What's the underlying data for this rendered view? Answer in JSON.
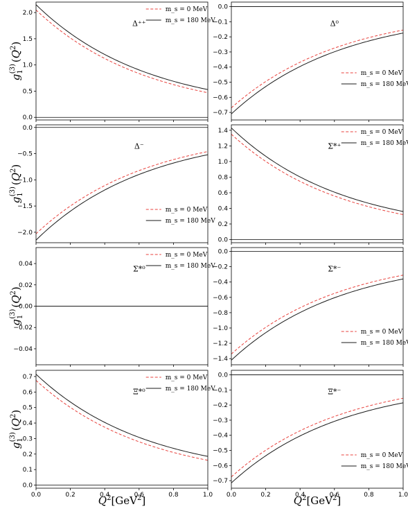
{
  "figure": {
    "ylabel": {
      "g": "g",
      "sub": "1",
      "sup": "(3)",
      "arg": "(Q",
      "argsup": "2",
      "close": ")"
    },
    "xlabel": {
      "q": "Q",
      "sup": "2",
      "unit": "[GeV",
      "unitsup": "2",
      "close": "]"
    }
  },
  "chart_data": [
    {
      "type": "line",
      "label": "Δ⁺⁺",
      "legend": "top-right",
      "xlim": [
        0,
        1
      ],
      "ylim": [
        -0.05,
        2.2
      ],
      "xticks": [
        "0.0",
        "0.2",
        "0.4",
        "0.6",
        "0.8",
        "1.0"
      ],
      "yticks": [
        "0.0",
        "0.5",
        "1.0",
        "1.5",
        "2.0"
      ],
      "zero_line": true,
      "series": [
        {
          "name": "m_s = 0 MeV",
          "style": "dashed",
          "color": "#e8413c",
          "start": 2.05,
          "end": 0.47,
          "alpha": 1.0
        },
        {
          "name": "m_s = 180 MeV",
          "style": "solid",
          "color": "#1a1a1a",
          "start": 2.15,
          "end": 0.53,
          "alpha": 1.0
        }
      ]
    },
    {
      "type": "line",
      "label": "Δ⁰",
      "legend": "center-right",
      "xlim": [
        0,
        1
      ],
      "ylim": [
        -0.75,
        0.03
      ],
      "xticks": [
        "0.0",
        "0.2",
        "0.4",
        "0.6",
        "0.8",
        "1.0"
      ],
      "yticks": [
        "0.0",
        "-0.1",
        "-0.2",
        "-0.3",
        "-0.4",
        "-0.5",
        "-0.6",
        "-0.7"
      ],
      "zero_line": true,
      "series": [
        {
          "name": "m_s = 0 MeV",
          "style": "dashed",
          "color": "#e8413c",
          "start": -0.67,
          "end": -0.155,
          "alpha": 1.0
        },
        {
          "name": "m_s = 180 MeV",
          "style": "solid",
          "color": "#1a1a1a",
          "start": -0.71,
          "end": -0.175,
          "alpha": 1.0
        }
      ]
    },
    {
      "type": "line",
      "label": "Δ⁻",
      "legend": "lower-right",
      "xlim": [
        0,
        1
      ],
      "ylim": [
        -2.2,
        0.05
      ],
      "xticks": [
        "0.0",
        "0.2",
        "0.4",
        "0.6",
        "0.8",
        "1.0"
      ],
      "yticks": [
        "0.0",
        "-0.5",
        "-1.0",
        "-1.5",
        "-2.0"
      ],
      "zero_line": true,
      "series": [
        {
          "name": "m_s = 0 MeV",
          "style": "dashed",
          "color": "#e8413c",
          "start": -2.03,
          "end": -0.46,
          "alpha": 1.0
        },
        {
          "name": "m_s = 180 MeV",
          "style": "solid",
          "color": "#1a1a1a",
          "start": -2.15,
          "end": -0.52,
          "alpha": 1.0
        }
      ]
    },
    {
      "type": "line",
      "label": "Σ*⁺",
      "legend": "top-right",
      "xlim": [
        0,
        1
      ],
      "ylim": [
        -0.04,
        1.47
      ],
      "xticks": [
        "0.0",
        "0.2",
        "0.4",
        "0.6",
        "0.8",
        "1.0"
      ],
      "yticks": [
        "0.0",
        "0.2",
        "0.4",
        "0.6",
        "0.8",
        "1.0",
        "1.2",
        "1.4"
      ],
      "zero_line": true,
      "series": [
        {
          "name": "m_s = 0 MeV",
          "style": "dashed",
          "color": "#e8413c",
          "start": 1.35,
          "end": 0.32,
          "alpha": 1.0
        },
        {
          "name": "m_s = 180 MeV",
          "style": "solid",
          "color": "#1a1a1a",
          "start": 1.43,
          "end": 0.36,
          "alpha": 1.0
        }
      ]
    },
    {
      "type": "line",
      "label": "Σ*⁰",
      "legend": "top-right",
      "xlim": [
        0,
        1
      ],
      "ylim": [
        -0.055,
        0.055
      ],
      "xticks": [
        "0.0",
        "0.2",
        "0.4",
        "0.6",
        "0.8",
        "1.0"
      ],
      "yticks": [
        "0.04",
        "0.02",
        "0.00",
        "-0.02",
        "-0.04"
      ],
      "zero_line": false,
      "series": [
        {
          "name": "m_s = 0 MeV",
          "style": "dashed",
          "color": "#e8413c",
          "start": 0.0,
          "end": 0.0,
          "alpha": 1.0
        },
        {
          "name": "m_s = 180 MeV",
          "style": "solid",
          "color": "#1a1a1a",
          "start": 0.0,
          "end": 0.0,
          "alpha": 1.0
        }
      ]
    },
    {
      "type": "line",
      "label": "Σ*⁻",
      "legend": "lower-right",
      "xlim": [
        0,
        1
      ],
      "ylim": [
        -1.48,
        0.05
      ],
      "xticks": [
        "0.0",
        "0.2",
        "0.4",
        "0.6",
        "0.8",
        "1.0"
      ],
      "yticks": [
        "0.0",
        "-0.2",
        "-0.4",
        "-0.6",
        "-0.8",
        "-1.0",
        "-1.2",
        "-1.4"
      ],
      "zero_line": true,
      "series": [
        {
          "name": "m_s = 0 MeV",
          "style": "dashed",
          "color": "#e8413c",
          "start": -1.34,
          "end": -0.31,
          "alpha": 1.0
        },
        {
          "name": "m_s = 180 MeV",
          "style": "solid",
          "color": "#1a1a1a",
          "start": -1.42,
          "end": -0.36,
          "alpha": 1.0
        }
      ]
    },
    {
      "type": "line",
      "label": "Ξ*⁰",
      "legend": "top-right",
      "xlim": [
        0,
        1
      ],
      "ylim": [
        -0.02,
        0.74
      ],
      "xticks": [
        "0.0",
        "0.2",
        "0.4",
        "0.6",
        "0.8",
        "1.0"
      ],
      "yticks": [
        "0.0",
        "0.1",
        "0.2",
        "0.3",
        "0.4",
        "0.5",
        "0.6",
        "0.7"
      ],
      "zero_line": true,
      "series": [
        {
          "name": "m_s = 0 MeV",
          "style": "dashed",
          "color": "#e8413c",
          "start": 0.675,
          "end": 0.16,
          "alpha": 1.0
        },
        {
          "name": "m_s = 180 MeV",
          "style": "solid",
          "color": "#1a1a1a",
          "start": 0.715,
          "end": 0.185,
          "alpha": 1.0
        }
      ]
    },
    {
      "type": "line",
      "label": "Ξ*⁻",
      "legend": "lower-right",
      "xlim": [
        0,
        1
      ],
      "ylim": [
        -0.75,
        0.03
      ],
      "xticks": [
        "0.0",
        "0.2",
        "0.4",
        "0.6",
        "0.8",
        "1.0"
      ],
      "yticks": [
        "0.0",
        "-0.1",
        "-0.2",
        "-0.3",
        "-0.4",
        "-0.5",
        "-0.6",
        "-0.7"
      ],
      "zero_line": true,
      "series": [
        {
          "name": "m_s = 0 MeV",
          "style": "dashed",
          "color": "#e8413c",
          "start": -0.675,
          "end": -0.155,
          "alpha": 1.0
        },
        {
          "name": "m_s = 180 MeV",
          "style": "solid",
          "color": "#1a1a1a",
          "start": -0.715,
          "end": -0.185,
          "alpha": 1.0
        }
      ]
    }
  ]
}
